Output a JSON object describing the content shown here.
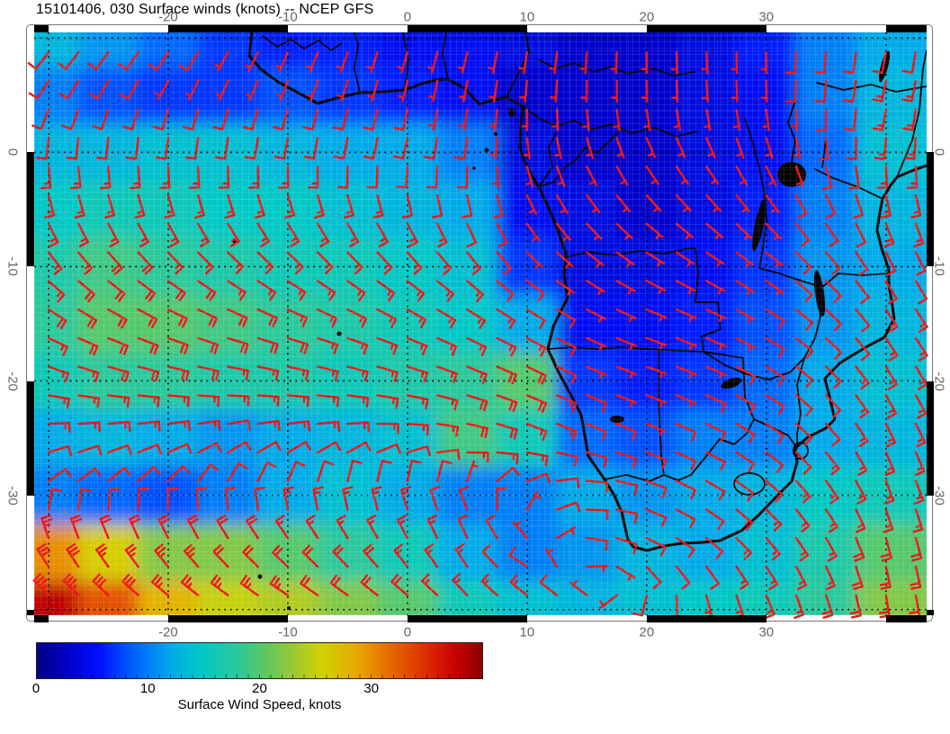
{
  "title": "15101406, 030 Surface winds (knots) -- NCEP GFS",
  "axes": {
    "top_tick_labels": [
      "-20",
      "-10",
      "0",
      "10",
      "20",
      "30"
    ],
    "bottom_tick_labels": [
      "-20",
      "-10",
      "0",
      "10",
      "20",
      "30"
    ],
    "left_tick_labels": [
      "0",
      "-10",
      "-20",
      "-30"
    ],
    "right_tick_labels": [
      "0",
      "-10",
      "-20",
      "-30"
    ],
    "lon_tick_values": [
      -20,
      -10,
      0,
      10,
      20,
      30
    ],
    "lat_tick_values": [
      0,
      -10,
      -20,
      -30
    ]
  },
  "colorbar": {
    "label": "Surface Wind Speed, knots",
    "tick_values": [
      0,
      10,
      20,
      30
    ],
    "tick_labels": [
      "0",
      "10",
      "20",
      "30"
    ],
    "min": 0,
    "max": 40,
    "stops": [
      {
        "v": 0.0,
        "c": "#000085"
      },
      {
        "v": 0.07,
        "c": "#0000c8"
      },
      {
        "v": 0.14,
        "c": "#0010ff"
      },
      {
        "v": 0.22,
        "c": "#0064ff"
      },
      {
        "v": 0.3,
        "c": "#00aae8"
      },
      {
        "v": 0.37,
        "c": "#00c8c8"
      },
      {
        "v": 0.45,
        "c": "#2cc89b"
      },
      {
        "v": 0.52,
        "c": "#64c85a"
      },
      {
        "v": 0.58,
        "c": "#a0c832"
      },
      {
        "v": 0.64,
        "c": "#d2d200"
      },
      {
        "v": 0.72,
        "c": "#e6a800"
      },
      {
        "v": 0.8,
        "c": "#e66400"
      },
      {
        "v": 0.88,
        "c": "#dc2800"
      },
      {
        "v": 0.94,
        "c": "#c80000"
      },
      {
        "v": 1.0,
        "c": "#8c0000"
      }
    ]
  },
  "chart_data": {
    "type": "heatmap",
    "title": "15101406, 030 Surface winds (knots) -- NCEP GFS",
    "model": "NCEP GFS",
    "run": "15101406",
    "forecast_hour": "030",
    "variable": "Surface wind speed and wind barbs",
    "units": "knots",
    "lon_range": [
      -31.2,
      43.4
    ],
    "lat_range": [
      -40.5,
      10.5
    ],
    "graticule_lons": [
      -30,
      -20,
      -10,
      0,
      10,
      20,
      30,
      40
    ],
    "graticule_lats": [
      10,
      0,
      -10,
      -20,
      -30,
      -40
    ],
    "grid_lons": [
      -30,
      -25,
      -20,
      -15,
      -10,
      -5,
      0,
      5,
      10,
      15,
      20,
      25,
      30,
      35,
      40
    ],
    "grid_lats": [
      10,
      5,
      0,
      -5,
      -10,
      -15,
      -20,
      -25,
      -30,
      -35,
      -40
    ],
    "wind_speed_kt": [
      [
        13,
        11,
        9,
        7,
        6,
        6,
        5,
        5,
        4,
        3,
        3,
        4,
        6,
        10,
        12
      ],
      [
        10,
        8,
        7,
        7,
        8,
        7,
        6,
        5,
        3,
        3,
        3,
        4,
        5,
        10,
        13
      ],
      [
        13,
        13,
        14,
        14,
        13,
        12,
        12,
        10,
        4,
        3,
        3,
        4,
        5,
        9,
        14
      ],
      [
        15,
        16,
        16,
        15,
        15,
        14,
        13,
        12,
        5,
        4,
        3,
        4,
        6,
        10,
        13
      ],
      [
        17,
        19,
        18,
        17,
        16,
        16,
        15,
        14,
        7,
        4,
        4,
        5,
        7,
        11,
        12
      ],
      [
        18,
        20,
        20,
        19,
        18,
        17,
        16,
        15,
        12,
        5,
        5,
        6,
        8,
        11,
        13
      ],
      [
        16,
        18,
        18,
        17,
        17,
        16,
        17,
        18,
        20,
        7,
        6,
        7,
        9,
        12,
        14
      ],
      [
        12,
        13,
        12,
        11,
        12,
        13,
        14,
        19,
        16,
        9,
        8,
        10,
        10,
        12,
        13
      ],
      [
        10,
        9,
        8,
        10,
        12,
        14,
        12,
        10,
        10,
        12,
        11,
        12,
        13,
        15,
        16
      ],
      [
        30,
        26,
        22,
        22,
        20,
        18,
        16,
        12,
        10,
        11,
        13,
        12,
        14,
        17,
        20
      ],
      [
        38,
        33,
        28,
        25,
        24,
        22,
        20,
        16,
        14,
        13,
        14,
        15,
        16,
        18,
        22
      ]
    ],
    "wind_dir_from_deg": [
      [
        220,
        218,
        215,
        210,
        205,
        200,
        198,
        195,
        190,
        185,
        180,
        178,
        180,
        185,
        190
      ],
      [
        210,
        208,
        205,
        202,
        200,
        196,
        192,
        188,
        184,
        180,
        178,
        176,
        178,
        184,
        192
      ],
      [
        180,
        182,
        184,
        186,
        188,
        190,
        192,
        188,
        170,
        158,
        150,
        150,
        158,
        170,
        182
      ],
      [
        160,
        159,
        158,
        156,
        155,
        157,
        160,
        163,
        150,
        140,
        134,
        134,
        140,
        150,
        162
      ],
      [
        136,
        133,
        130,
        128,
        128,
        130,
        132,
        135,
        130,
        124,
        120,
        121,
        126,
        136,
        150
      ],
      [
        118,
        115,
        112,
        110,
        110,
        112,
        115,
        118,
        120,
        115,
        110,
        113,
        121,
        133,
        146
      ],
      [
        105,
        102,
        100,
        98,
        100,
        102,
        105,
        110,
        114,
        112,
        110,
        113,
        121,
        136,
        150
      ],
      [
        80,
        77,
        74,
        72,
        75,
        80,
        90,
        100,
        110,
        112,
        113,
        116,
        126,
        140,
        155
      ],
      [
        45,
        38,
        30,
        18,
        8,
        358,
        350,
        340,
        50,
        90,
        110,
        122,
        132,
        146,
        160
      ],
      [
        335,
        332,
        328,
        322,
        318,
        322,
        328,
        334,
        300,
        100,
        118,
        132,
        142,
        152,
        166
      ],
      [
        310,
        308,
        305,
        302,
        300,
        302,
        306,
        312,
        310,
        300,
        210,
        175,
        162,
        166,
        172
      ]
    ],
    "barb_color": "#ee1313",
    "barb_spacing_deg": 2.5,
    "legend_position": "bottom",
    "grid": "dotted graticule every 10 degrees"
  }
}
